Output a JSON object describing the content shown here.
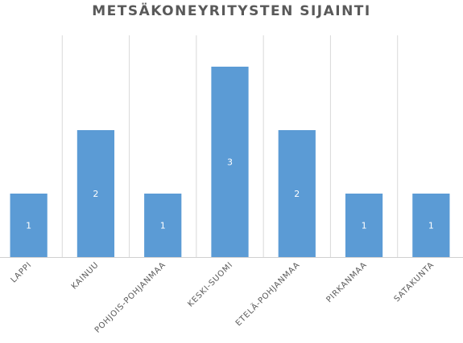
{
  "chart_data": {
    "type": "bar",
    "title": "METSÄKONEYRITYSTEN SIJAINTI",
    "categories": [
      "LAPPI",
      "KAINUU",
      "POHJOIS-POHJANMAA",
      "KESKI-SUOMI",
      "ETELÄ-POHJANMAA",
      "PIRKANMAA",
      "SATAKUNTA"
    ],
    "values": [
      1,
      2,
      1,
      3,
      2,
      1,
      1
    ],
    "ylim": [
      0,
      3
    ],
    "grid": "vertical",
    "data_labels": true,
    "bar_color": "#5b9bd5"
  }
}
